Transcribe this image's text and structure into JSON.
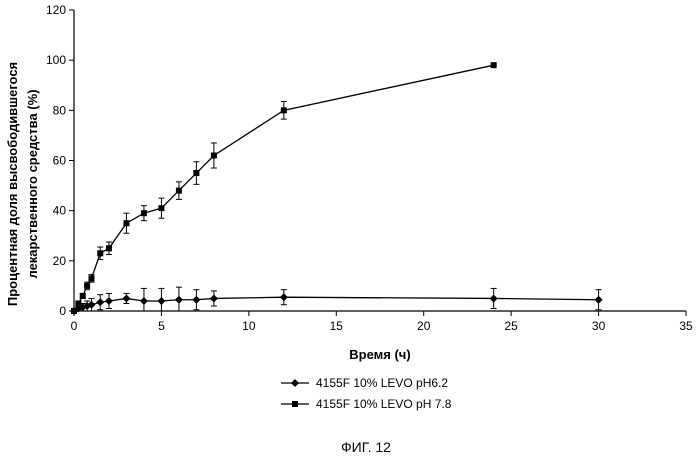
{
  "chart_data": {
    "type": "line",
    "xlabel": "Время (ч)",
    "ylabel_lines": [
      "Процентная доля высвободившегося",
      "лекарственного средства (%)"
    ],
    "xlim": [
      0,
      35
    ],
    "ylim": [
      0,
      120
    ],
    "xticks": [
      "0",
      "5",
      "10",
      "15",
      "20",
      "25",
      "30",
      "35"
    ],
    "yticks": [
      "0",
      "20",
      "40",
      "60",
      "80",
      "100",
      "120"
    ],
    "grid": false,
    "legend_position": "bottom-center",
    "series": [
      {
        "name": "4155F 10% LEVO pH6.2",
        "marker": "diamond",
        "x": [
          0,
          0.25,
          0.5,
          0.75,
          1,
          1.5,
          2,
          3,
          4,
          5,
          6,
          7,
          8,
          12,
          24,
          30
        ],
        "y": [
          0,
          1,
          1.5,
          2,
          2.5,
          3.5,
          4,
          5,
          4,
          4,
          4.5,
          4.5,
          5,
          5.5,
          5,
          4.5
        ],
        "err": [
          0,
          1,
          1.5,
          2,
          2.5,
          3,
          3,
          2,
          5,
          5,
          5,
          4,
          3,
          3,
          4,
          4
        ]
      },
      {
        "name": "4155F 10% LEVO pH 7.8",
        "marker": "square",
        "x": [
          0,
          0.25,
          0.5,
          0.75,
          1,
          1.5,
          2,
          3,
          4,
          5,
          6,
          7,
          8,
          12,
          24
        ],
        "y": [
          0,
          3,
          6,
          10,
          13,
          23,
          25,
          35,
          39,
          41,
          48,
          55,
          62,
          80,
          98
        ],
        "err": [
          0,
          1,
          1,
          1.5,
          1.5,
          2.5,
          2.5,
          4,
          3,
          4,
          3.5,
          4.5,
          5,
          3.5,
          0
        ]
      }
    ]
  },
  "caption": "ФИГ. 12"
}
